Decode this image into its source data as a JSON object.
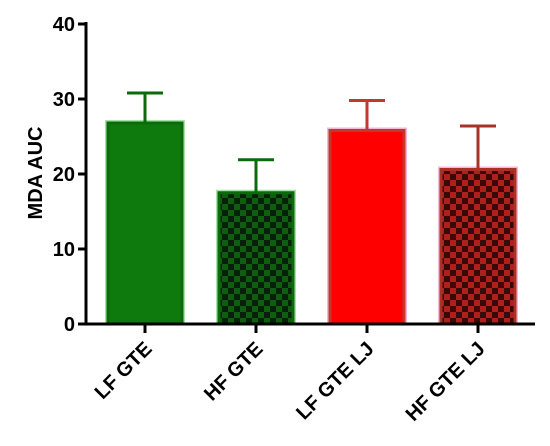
{
  "chart_data": {
    "type": "bar",
    "ylabel": "MDA AUC",
    "xlabel": "",
    "ylim": [
      0,
      40
    ],
    "yticks": [
      0,
      10,
      20,
      30,
      40
    ],
    "grid": false,
    "categories": [
      "LF GTE",
      "HF GTE",
      "LF GTE LJ",
      "HF GTE LJ"
    ],
    "values": [
      26.8,
      17.5,
      25.8,
      20.6
    ],
    "error_upper": [
      4.0,
      4.4,
      4.0,
      5.8
    ],
    "bars": [
      {
        "category": "LF GTE",
        "value": 26.8,
        "error": 4.0,
        "color": "#0e7a0e",
        "outline": "#0b6b0b",
        "pattern": "solid"
      },
      {
        "category": "HF GTE",
        "value": 17.5,
        "error": 4.4,
        "color": "#1b6f1b",
        "outline": "#0b6b0b",
        "pattern": "checker"
      },
      {
        "category": "LF GTE LJ",
        "value": 25.8,
        "error": 4.0,
        "color": "#ff0000",
        "outline": "#c0392b",
        "pattern": "solid"
      },
      {
        "category": "HF GTE LJ",
        "value": 20.6,
        "error": 5.8,
        "color": "#b22222",
        "outline": "#a83225",
        "pattern": "checker"
      }
    ]
  }
}
